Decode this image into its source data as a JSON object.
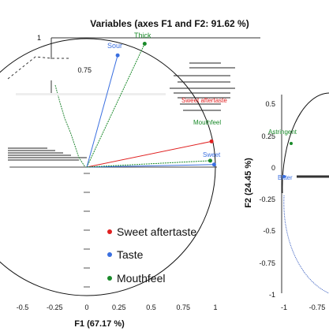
{
  "chart_data": [
    {
      "type": "scatter",
      "title": "Variables (axes F1 and F2: 91.62 %)",
      "xlabel": "F1 (67.17 %)",
      "ylabel": "",
      "xlim": [
        -0.6,
        1.05
      ],
      "ylim": [
        -1,
        1
      ],
      "x_ticks": [
        "-0.5",
        "-0.25",
        "0",
        "0.25",
        "0.5",
        "0.75",
        "1"
      ],
      "y_ticks_visible": [
        "1",
        "0.75"
      ],
      "grid": false,
      "legend_position": "bottom-center",
      "legend": [
        {
          "label": "Sweet aftertaste",
          "color": "#e02020"
        },
        {
          "label": "Taste",
          "color": "#3a6fe0"
        },
        {
          "label": "Mouthfeel",
          "color": "#1a8a2a"
        }
      ],
      "variables": [
        {
          "name": "Thick",
          "group": "Mouthfeel",
          "x": 0.45,
          "y": 0.96
        },
        {
          "name": "Sour",
          "group": "Taste",
          "x": 0.24,
          "y": 0.87
        },
        {
          "name": "Sweet aftertaste",
          "group": "Sweet aftertaste",
          "x": 0.97,
          "y": 0.2
        },
        {
          "name": "Sweet",
          "group": "Taste",
          "x": 0.99,
          "y": 0.02
        },
        {
          "name": "Mouthfeel",
          "group": "Mouthfeel",
          "x": 0.96,
          "y": 0.05
        }
      ],
      "visible_text": {
        "sour_label": "Sour",
        "thick_label": "Thick",
        "sweet_label": "Sweet",
        "sweet_after_label": "Sweet aftertaste",
        "mouthfeel_label": "Mouthfeel"
      }
    },
    {
      "type": "scatter",
      "title": "",
      "xlabel": "",
      "ylabel": "F2 (24.45 %)",
      "y_ticks": [
        "0.5",
        "0.25",
        "0",
        "-0.25",
        "-0.5",
        "-0.75",
        "-1"
      ],
      "x_ticks": [
        "-1",
        "-0.75"
      ],
      "variables_visible": [
        "Astringent",
        "Bitter"
      ]
    }
  ]
}
